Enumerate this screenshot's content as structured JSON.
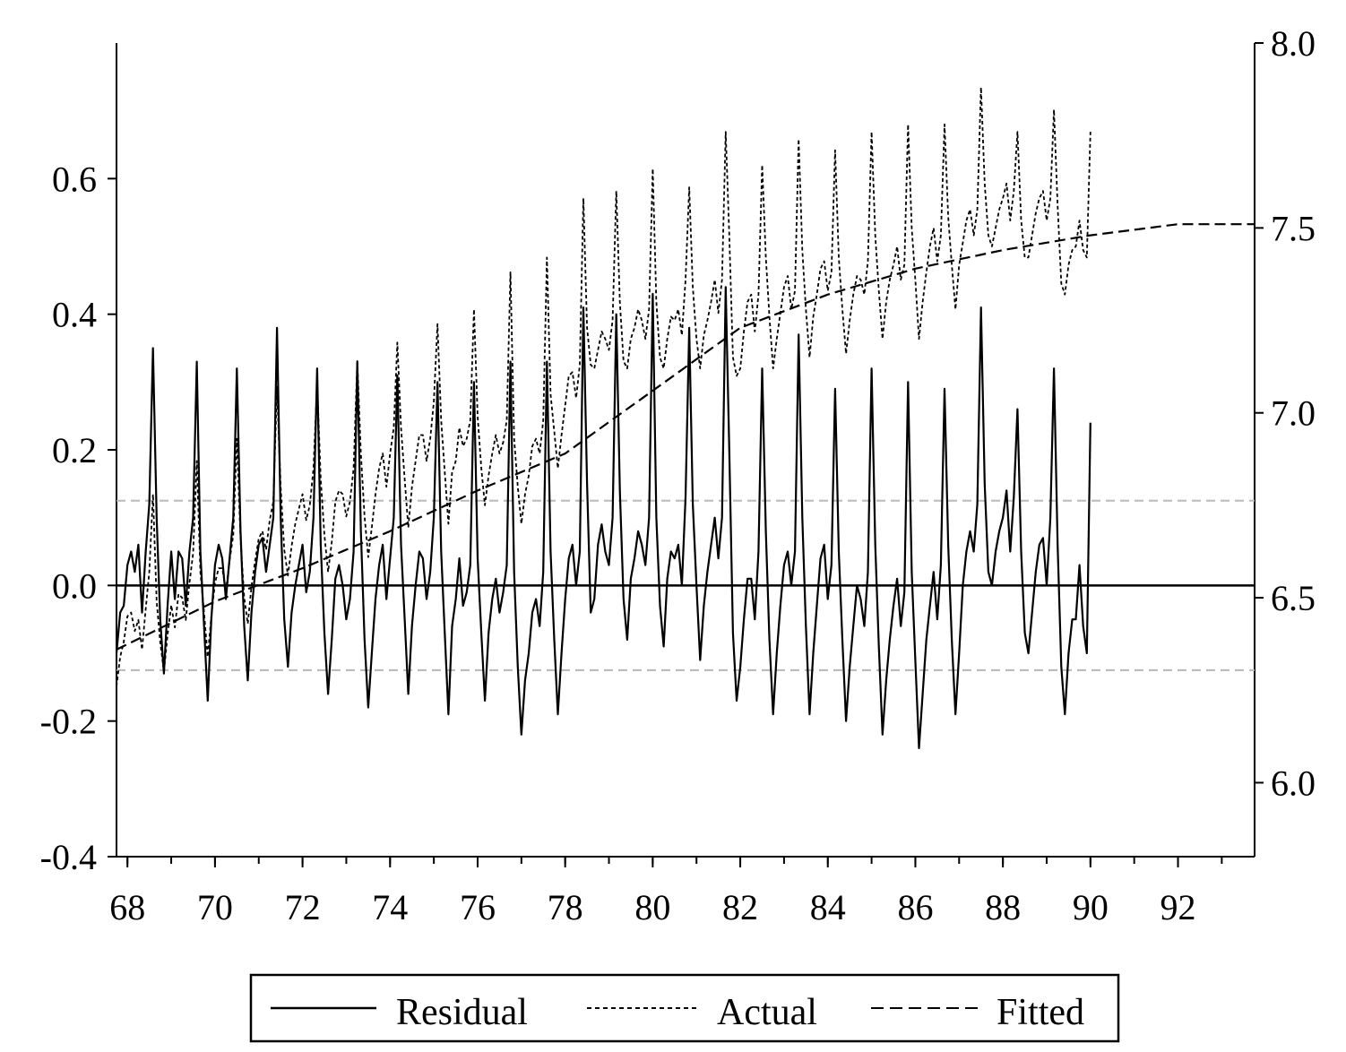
{
  "chart_data": {
    "type": "line",
    "title": "",
    "xlabel": "",
    "x_start": 1967.75,
    "x_end": 1993.75,
    "x_ticks": [
      "68",
      "70",
      "72",
      "74",
      "76",
      "78",
      "80",
      "82",
      "84",
      "86",
      "88",
      "90",
      "92"
    ],
    "x_tick_years": [
      1968,
      1970,
      1972,
      1974,
      1976,
      1978,
      1980,
      1982,
      1984,
      1986,
      1988,
      1990,
      1992
    ],
    "left_axis": {
      "label": "",
      "range": [
        -0.4,
        0.8
      ],
      "ticks": [
        "-0.4",
        "-0.2",
        "0.0",
        "0.2",
        "0.4",
        "0.6"
      ],
      "tick_values": [
        -0.4,
        -0.2,
        0.0,
        0.2,
        0.4,
        0.6
      ]
    },
    "right_axis": {
      "label": "",
      "range": [
        5.8,
        8.0
      ],
      "ticks": [
        "6.0",
        "6.5",
        "7.0",
        "7.5",
        "8.0"
      ],
      "tick_values": [
        6.0,
        6.5,
        7.0,
        7.5,
        8.0
      ]
    },
    "residual_bands": [
      0.125,
      -0.125
    ],
    "series": [
      {
        "name": "Residual",
        "axis": "left",
        "line_style": "solid",
        "x_start": 1967.75,
        "x_step": 0.0833333,
        "values": [
          -0.1,
          -0.04,
          -0.03,
          0.03,
          0.05,
          0.02,
          0.06,
          -0.04,
          0.05,
          0.12,
          0.35,
          0.1,
          -0.05,
          -0.13,
          -0.03,
          0.05,
          -0.02,
          0.05,
          0.04,
          -0.03,
          0.05,
          0.1,
          0.33,
          0.05,
          -0.06,
          -0.17,
          -0.05,
          0.03,
          0.06,
          0.04,
          -0.02,
          0.04,
          0.1,
          0.32,
          0.08,
          -0.06,
          -0.14,
          -0.04,
          0.02,
          0.06,
          0.07,
          0.02,
          0.06,
          0.1,
          0.38,
          0.1,
          -0.05,
          -0.12,
          -0.04,
          0.0,
          0.03,
          0.06,
          -0.01,
          0.02,
          0.1,
          0.32,
          0.06,
          -0.07,
          -0.16,
          -0.08,
          0.01,
          0.03,
          0.0,
          -0.05,
          -0.02,
          0.05,
          0.33,
          0.08,
          -0.08,
          -0.18,
          -0.1,
          -0.02,
          0.03,
          0.06,
          -0.02,
          0.04,
          0.1,
          0.31,
          0.06,
          -0.05,
          -0.16,
          -0.06,
          0.0,
          0.05,
          0.04,
          -0.02,
          0.02,
          0.1,
          0.3,
          0.05,
          -0.07,
          -0.19,
          -0.06,
          -0.02,
          0.04,
          -0.03,
          -0.01,
          0.03,
          0.3,
          0.04,
          -0.07,
          -0.17,
          -0.07,
          -0.02,
          0.01,
          -0.04,
          -0.01,
          0.03,
          0.33,
          0.02,
          -0.12,
          -0.22,
          -0.14,
          -0.1,
          -0.04,
          -0.02,
          -0.06,
          0.02,
          0.33,
          0.05,
          -0.08,
          -0.19,
          -0.1,
          -0.02,
          0.04,
          0.06,
          0.0,
          0.05,
          0.41,
          0.15,
          -0.04,
          -0.02,
          0.06,
          0.09,
          0.05,
          0.03,
          0.1,
          0.4,
          0.14,
          -0.02,
          -0.08,
          0.01,
          0.04,
          0.08,
          0.06,
          0.03,
          0.1,
          0.43,
          0.1,
          -0.03,
          -0.09,
          0.01,
          0.05,
          0.04,
          0.06,
          0.0,
          0.13,
          0.38,
          0.12,
          0.0,
          -0.11,
          -0.03,
          0.02,
          0.06,
          0.1,
          0.04,
          0.1,
          0.44,
          0.2,
          -0.07,
          -0.17,
          -0.12,
          -0.05,
          0.01,
          0.01,
          -0.05,
          0.05,
          0.32,
          0.08,
          -0.08,
          -0.19,
          -0.1,
          -0.03,
          0.03,
          0.05,
          0.0,
          0.05,
          0.37,
          0.1,
          -0.06,
          -0.19,
          -0.1,
          -0.03,
          0.04,
          0.06,
          -0.02,
          0.03,
          0.29,
          0.05,
          -0.08,
          -0.2,
          -0.12,
          -0.06,
          0.0,
          -0.02,
          -0.06,
          0.02,
          0.32,
          0.06,
          -0.09,
          -0.22,
          -0.14,
          -0.08,
          -0.03,
          0.01,
          -0.06,
          -0.01,
          0.3,
          0.02,
          -0.11,
          -0.24,
          -0.16,
          -0.08,
          -0.03,
          0.02,
          -0.05,
          0.03,
          0.29,
          0.06,
          -0.08,
          -0.19,
          -0.1,
          0.0,
          0.05,
          0.08,
          0.05,
          0.12,
          0.41,
          0.15,
          0.02,
          0.0,
          0.05,
          0.08,
          0.1,
          0.14,
          0.05,
          0.13,
          0.26,
          0.05,
          -0.07,
          -0.1,
          -0.04,
          0.02,
          0.06,
          0.07,
          0.0,
          0.1,
          0.32,
          0.06,
          -0.12,
          -0.19,
          -0.1,
          -0.05,
          -0.05,
          0.03,
          -0.06,
          -0.1,
          0.24
        ],
        "color": "#000000"
      },
      {
        "name": "Actual",
        "axis": "right",
        "line_style": "dotted",
        "x_start": 1967.75,
        "x_step": 0.0833333,
        "values": [
          6.26,
          6.34,
          6.38,
          6.45,
          6.46,
          6.41,
          6.44,
          6.36,
          6.47,
          6.57,
          6.78,
          6.49,
          6.38,
          6.3,
          6.4,
          6.48,
          6.42,
          6.51,
          6.5,
          6.44,
          6.54,
          6.62,
          6.87,
          6.57,
          6.46,
          6.34,
          6.45,
          6.54,
          6.58,
          6.58,
          6.52,
          6.6,
          6.67,
          6.93,
          6.66,
          6.5,
          6.43,
          6.53,
          6.6,
          6.66,
          6.68,
          6.63,
          6.71,
          6.76,
          7.07,
          6.8,
          6.63,
          6.56,
          6.64,
          6.7,
          6.74,
          6.78,
          6.71,
          6.75,
          6.85,
          7.08,
          6.82,
          6.67,
          6.57,
          6.65,
          6.76,
          6.79,
          6.78,
          6.72,
          6.76,
          6.85,
          7.14,
          6.89,
          6.72,
          6.61,
          6.69,
          6.78,
          6.85,
          6.89,
          6.8,
          6.89,
          6.96,
          7.19,
          6.96,
          6.82,
          6.69,
          6.8,
          6.87,
          6.94,
          6.94,
          6.87,
          6.93,
          7.03,
          7.24,
          6.98,
          6.84,
          6.7,
          6.84,
          6.87,
          6.96,
          6.91,
          6.93,
          6.98,
          7.28,
          6.99,
          6.85,
          6.75,
          6.83,
          6.89,
          6.94,
          6.89,
          6.92,
          6.98,
          7.38,
          6.93,
          6.8,
          6.7,
          6.78,
          6.83,
          6.91,
          6.93,
          6.89,
          6.98,
          7.42,
          7.05,
          6.95,
          6.85,
          6.94,
          7.02,
          7.1,
          7.11,
          7.04,
          7.13,
          7.58,
          7.23,
          7.13,
          7.12,
          7.17,
          7.22,
          7.2,
          7.17,
          7.25,
          7.6,
          7.3,
          7.14,
          7.12,
          7.2,
          7.23,
          7.28,
          7.25,
          7.2,
          7.28,
          7.66,
          7.3,
          7.15,
          7.12,
          7.2,
          7.26,
          7.25,
          7.28,
          7.21,
          7.36,
          7.61,
          7.34,
          7.2,
          7.12,
          7.21,
          7.25,
          7.3,
          7.36,
          7.27,
          7.36,
          7.76,
          7.48,
          7.15,
          7.1,
          7.12,
          7.22,
          7.3,
          7.32,
          7.22,
          7.32,
          7.67,
          7.42,
          7.26,
          7.12,
          7.2,
          7.27,
          7.34,
          7.37,
          7.28,
          7.33,
          7.74,
          7.44,
          7.28,
          7.15,
          7.26,
          7.32,
          7.39,
          7.41,
          7.33,
          7.38,
          7.71,
          7.42,
          7.28,
          7.16,
          7.25,
          7.32,
          7.37,
          7.36,
          7.32,
          7.41,
          7.76,
          7.48,
          7.33,
          7.2,
          7.3,
          7.36,
          7.4,
          7.45,
          7.36,
          7.4,
          7.78,
          7.5,
          7.36,
          7.2,
          7.3,
          7.38,
          7.45,
          7.5,
          7.41,
          7.48,
          7.78,
          7.53,
          7.4,
          7.28,
          7.4,
          7.46,
          7.52,
          7.55,
          7.48,
          7.55,
          7.88,
          7.62,
          7.48,
          7.45,
          7.5,
          7.55,
          7.58,
          7.62,
          7.52,
          7.6,
          7.76,
          7.52,
          7.42,
          7.42,
          7.48,
          7.54,
          7.58,
          7.6,
          7.52,
          7.58,
          7.82,
          7.56,
          7.35,
          7.32,
          7.4,
          7.44,
          7.45,
          7.52,
          7.44,
          7.42,
          7.76
        ],
        "color": "#000000"
      },
      {
        "name": "Fitted",
        "axis": "right",
        "line_style": "dashed",
        "fitted_anchors": [
          [
            1967.75,
            6.36
          ],
          [
            1970,
            6.49
          ],
          [
            1972,
            6.58
          ],
          [
            1974,
            6.68
          ],
          [
            1976,
            6.79
          ],
          [
            1978,
            6.89
          ],
          [
            1980,
            7.06
          ],
          [
            1982,
            7.23
          ],
          [
            1984,
            7.32
          ],
          [
            1986,
            7.39
          ],
          [
            1988,
            7.44
          ],
          [
            1990,
            7.48
          ],
          [
            1992,
            7.51
          ],
          [
            1993.75,
            7.51
          ]
        ],
        "color": "#000000"
      }
    ],
    "legend": {
      "position": "bottom",
      "entries": [
        "Residual",
        "Actual",
        "Fitted"
      ]
    },
    "grid": false
  }
}
